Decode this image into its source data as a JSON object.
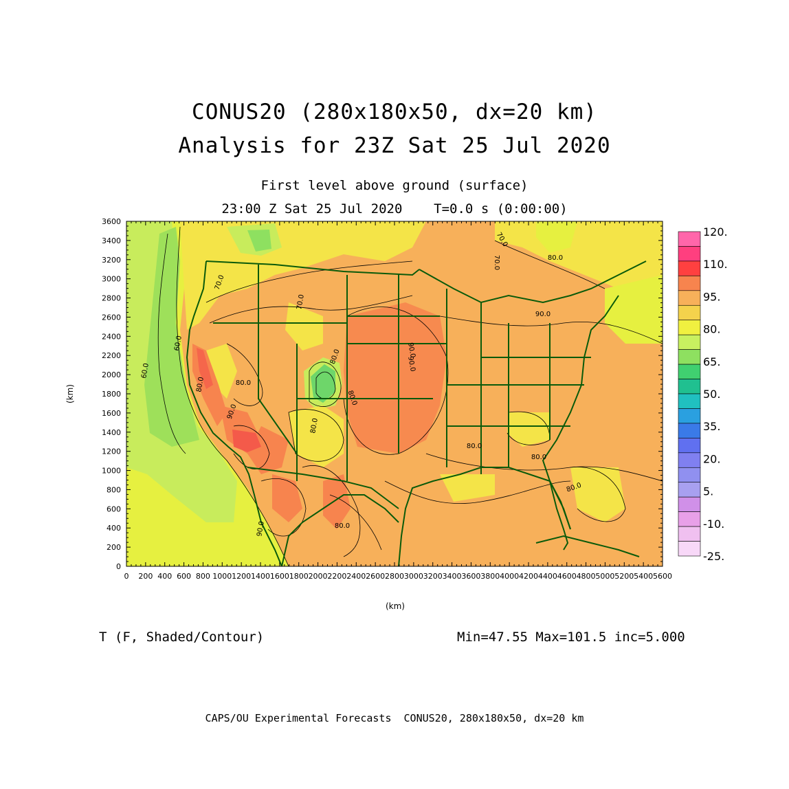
{
  "title": {
    "line1": "CONUS20 (280x180x50, dx=20 km)",
    "line2": "Analysis for 23Z Sat 25 Jul 2020"
  },
  "subtitle": {
    "line1": "First level above ground (surface)",
    "line2": "23:00 Z Sat 25 Jul 2020    T=0.0 s (0:00:00)"
  },
  "axes": {
    "x_unit": "(km)",
    "y_unit": "(km)",
    "x_ticks": [
      "0",
      "200",
      "400",
      "600",
      "800",
      "1000",
      "1200",
      "1400",
      "1600",
      "1800",
      "2000",
      "2200",
      "2400",
      "2600",
      "2800",
      "3000",
      "3200",
      "3400",
      "3600",
      "3800",
      "4000",
      "4200",
      "4400",
      "4600",
      "4800",
      "5000",
      "5200",
      "5400",
      "5600"
    ],
    "y_ticks": [
      "0",
      "200",
      "400",
      "600",
      "800",
      "1000",
      "1200",
      "1400",
      "1600",
      "1800",
      "2000",
      "2200",
      "2400",
      "2600",
      "2800",
      "3000",
      "3200",
      "3400",
      "3600"
    ]
  },
  "colorbar": {
    "labels": [
      "120.",
      "110.",
      "95.",
      "80.",
      "65.",
      "50.",
      "35.",
      "20.",
      "5.",
      "-10.",
      "-25."
    ],
    "colors": [
      "#ff66aa",
      "#ff3f7f",
      "#ff4040",
      "#f7844e",
      "#f7b05a",
      "#f4d24c",
      "#f0f040",
      "#c8f060",
      "#8ee060",
      "#40d070",
      "#20c090",
      "#20c0c0",
      "#2aa0e0",
      "#3a7ae8",
      "#6070f0",
      "#8080f0",
      "#9090f0",
      "#a8a0f0",
      "#d090e8",
      "#e8a0e8",
      "#f0c0f0",
      "#f8d8f8"
    ]
  },
  "contour_labels": [
    "60.0",
    "60.0",
    "70.0",
    "70.0",
    "70.0",
    "70.0",
    "80.0",
    "80.0",
    "80.0",
    "80.0",
    "80.0",
    "80.0",
    "80.0",
    "80.0",
    "80.0",
    "80.0",
    "90.0",
    "90.0",
    "90.0",
    "90.0",
    "90.0"
  ],
  "footer": {
    "variable": "T (F, Shaded/Contour)",
    "stats": "Min=47.55 Max=101.5 inc=5.000",
    "credit": "CAPS/OU Experimental Forecasts  CONUS20, 280x180x50, dx=20 km"
  }
}
